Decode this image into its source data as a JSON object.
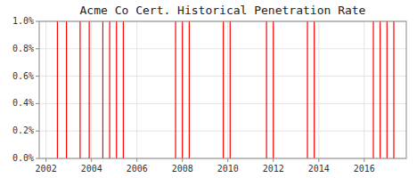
{
  "chart_data": {
    "type": "vlines",
    "title": "Acme Co Cert. Historical Penetration Rate",
    "x": [
      2002.5,
      2002.9,
      2003.5,
      2003.9,
      2004.5,
      2004.8,
      2005.1,
      2005.4,
      2007.7,
      2008.0,
      2008.3,
      2009.8,
      2010.1,
      2011.7,
      2012.0,
      2013.5,
      2013.8,
      2016.4,
      2016.7,
      2017.0,
      2017.3
    ],
    "color": "#ff0000",
    "xlim": [
      2001.7,
      2017.85
    ],
    "ylim": [
      0.0,
      1.0
    ],
    "xticks": [
      2002,
      2004,
      2006,
      2008,
      2010,
      2012,
      2014,
      2016
    ],
    "yticks": [
      {
        "value": 0.0,
        "label": "0.0%"
      },
      {
        "value": 0.2,
        "label": "0.2%"
      },
      {
        "value": 0.4,
        "label": "0.4%"
      },
      {
        "value": 0.6,
        "label": "0.6%"
      },
      {
        "value": 0.8,
        "label": "0.8%"
      },
      {
        "value": 1.0,
        "label": "1.0%"
      }
    ],
    "grid": true
  }
}
